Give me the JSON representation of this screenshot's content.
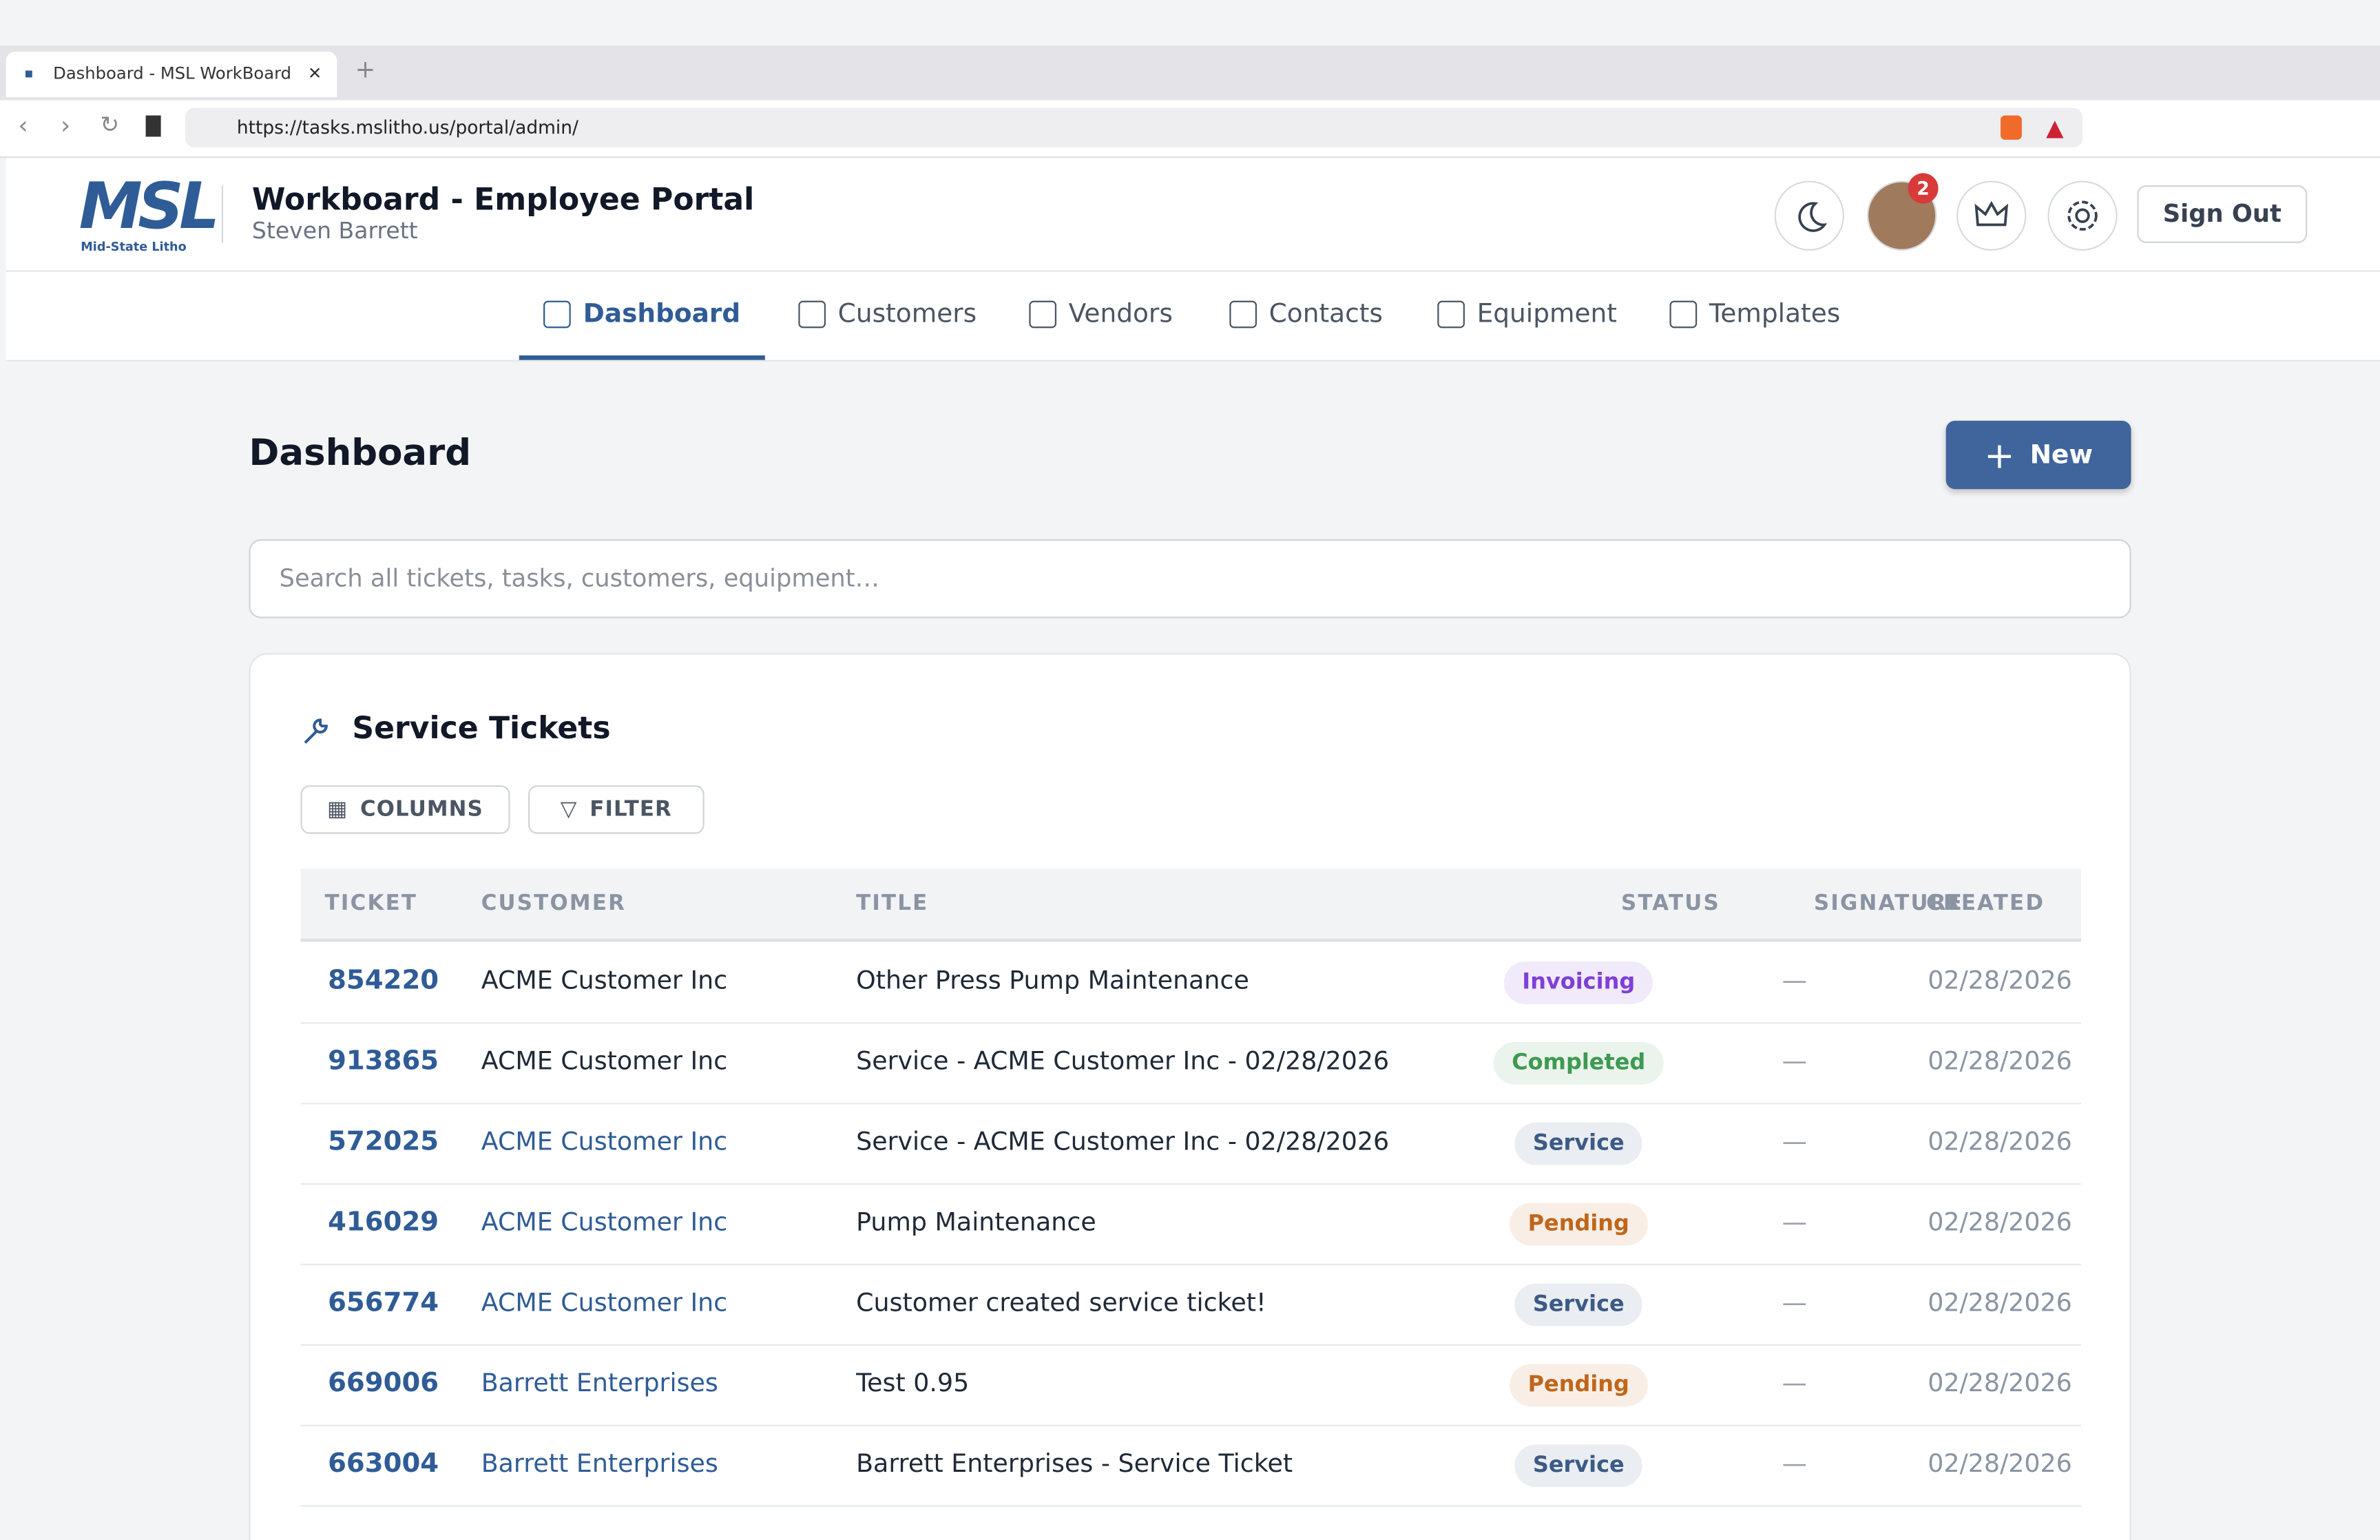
{
  "browser": {
    "tab_title": "Dashboard - MSL WorkBoard",
    "url": "https://tasks.mslitho.us/portal/admin/"
  },
  "header": {
    "logo": "MSL",
    "logo_sub": "Mid-State Litho",
    "title": "Workboard - Employee Portal",
    "user": "Steven Barrett",
    "notifications": 2,
    "sign_out": "Sign Out"
  },
  "nav": [
    "Dashboard",
    "Customers",
    "Vendors",
    "Contacts",
    "Equipment",
    "Templates"
  ],
  "page": {
    "title": "Dashboard",
    "new_button": "New",
    "search_placeholder": "Search all tickets, tasks, customers, equipment…"
  },
  "tickets": {
    "title": "Service Tickets",
    "buttons": [
      "COLUMNS",
      "FILTER"
    ],
    "columns": [
      "TICKET",
      "CUSTOMER",
      "TITLE",
      "STATUS",
      "SIGNATURE",
      "CREATED"
    ],
    "rows": [
      {
        "ticket": "854220",
        "customer": "ACME Customer Inc",
        "title": "Other Press Pump Maintenance",
        "status": "Invoicing",
        "status_color": "#7e3fd6",
        "signature": "—",
        "created": "02/28/2026"
      },
      {
        "ticket": "913865",
        "customer": "ACME Customer Inc",
        "title": "Service - ACME Customer Inc - 02/28/2026",
        "status": "Completed",
        "status_color": "#3d9a50",
        "signature": "—",
        "created": "02/28/2026"
      },
      {
        "ticket": "572025",
        "customer": "ACME Customer Inc",
        "title": "Service - ACME Customer Inc - 02/28/2026",
        "status": "Service",
        "status_color": "#3c5a86",
        "signature": "—",
        "created": "02/28/2026"
      },
      {
        "ticket": "416029",
        "customer": "ACME Customer Inc",
        "title": "Pump Maintenance",
        "status": "Pending",
        "status_color": "#c0661a",
        "signature": "—",
        "created": "02/28/2026"
      },
      {
        "ticket": "656774",
        "customer": "ACME Customer Inc",
        "title": "Customer created service ticket!",
        "status": "Service",
        "status_color": "#3c5a86",
        "signature": "—",
        "created": "02/28/2026"
      },
      {
        "ticket": "669006",
        "customer": "Barrett Enterprises",
        "title": "Test 0.95",
        "status": "Pending",
        "status_color": "#c0661a",
        "signature": "—",
        "created": "02/28/2026"
      },
      {
        "ticket": "663004",
        "customer": "Barrett Enterprises",
        "title": "Barrett Enterprises - Service Ticket",
        "status": "Service",
        "status_color": "#3c5a86",
        "signature": "—",
        "created": "02/28/2026"
      }
    ]
  }
}
